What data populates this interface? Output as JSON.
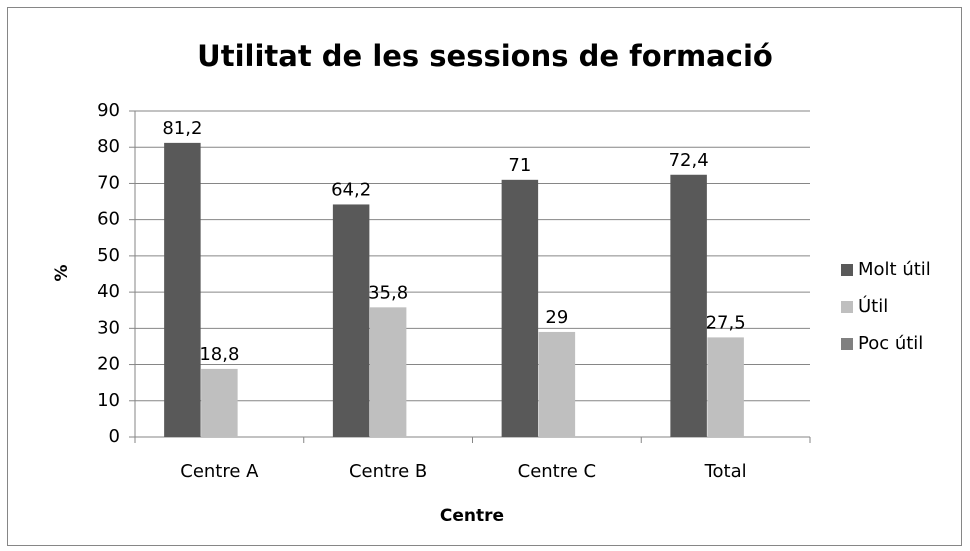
{
  "chart_data": {
    "type": "bar",
    "title": "Utilitat de les sessions de formació",
    "x_label": "Centre",
    "y_label": "%",
    "categories": [
      "Centre A",
      "Centre B",
      "Centre C",
      "Total"
    ],
    "series": [
      {
        "name": "Molt útil",
        "color": "#595959",
        "values": [
          81.2,
          64.2,
          71,
          72.4
        ],
        "value_labels": [
          "81,2",
          "64,2",
          "71",
          "72,4"
        ]
      },
      {
        "name": "Útil",
        "color": "#bfbfbf",
        "values": [
          18.8,
          35.8,
          29,
          27.5
        ],
        "value_labels": [
          "18,8",
          "35,8",
          "29",
          "27,5"
        ]
      },
      {
        "name": "Poc útil",
        "color": "#808080",
        "values": [
          0,
          0,
          0,
          0
        ]
      }
    ],
    "ylim": [
      0,
      90
    ],
    "yticks": [
      0,
      10,
      20,
      30,
      40,
      50,
      60,
      70,
      80,
      90
    ],
    "grid": true,
    "legend": "right"
  }
}
